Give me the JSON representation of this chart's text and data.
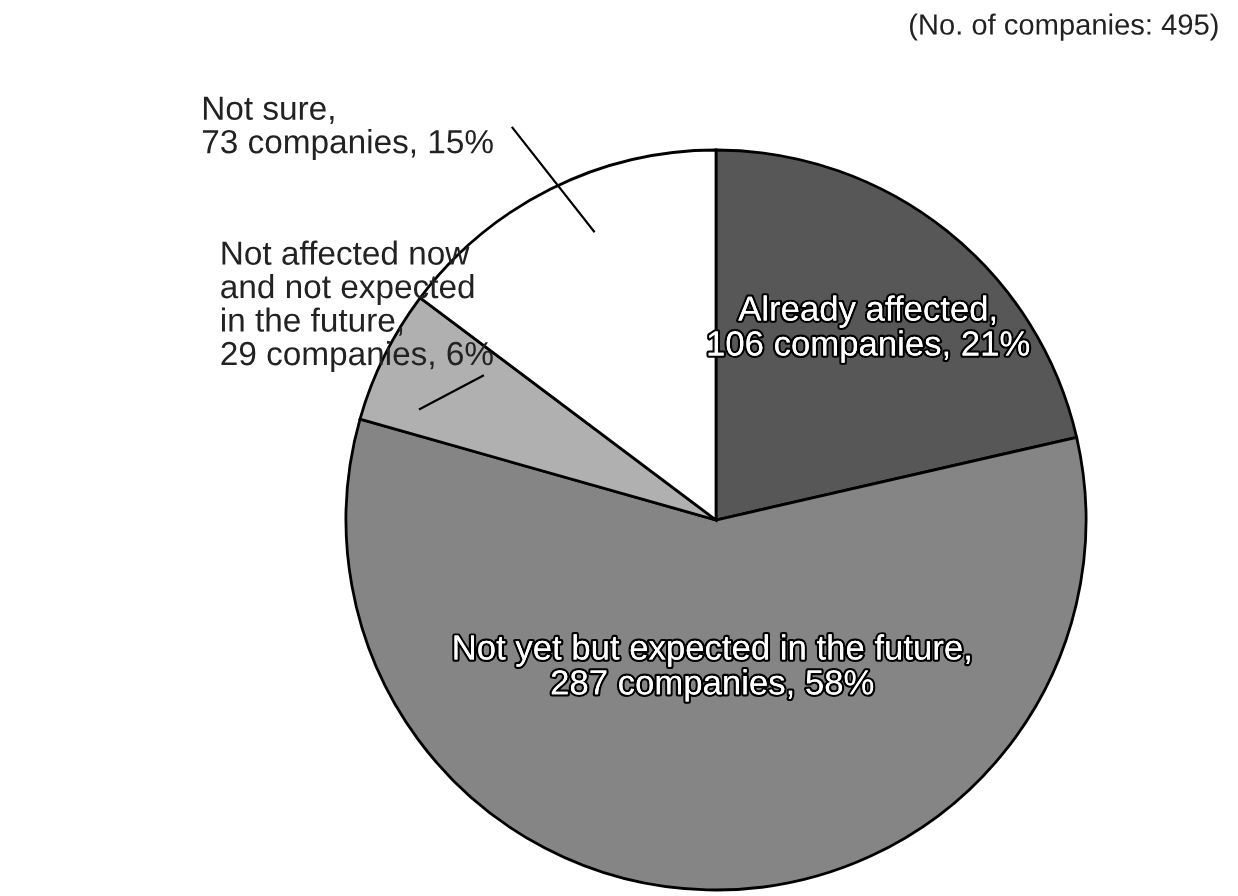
{
  "chart_data": {
    "type": "pie",
    "categories": [
      "Already affected,\n106 companies, 21%",
      "Not yet but expected in the future,\n287 companies, 58%",
      "Not affected now\nand not expected\nin the future,\n29 companies, 6%",
      "Not sure,\n73 companies, 15%"
    ],
    "values": [
      106,
      287,
      29,
      73
    ],
    "colors": [
      "#575757",
      "#858585",
      "#b0b0b0",
      "#ffffff"
    ],
    "annotations": [
      "(No. of companies: 495)"
    ]
  }
}
